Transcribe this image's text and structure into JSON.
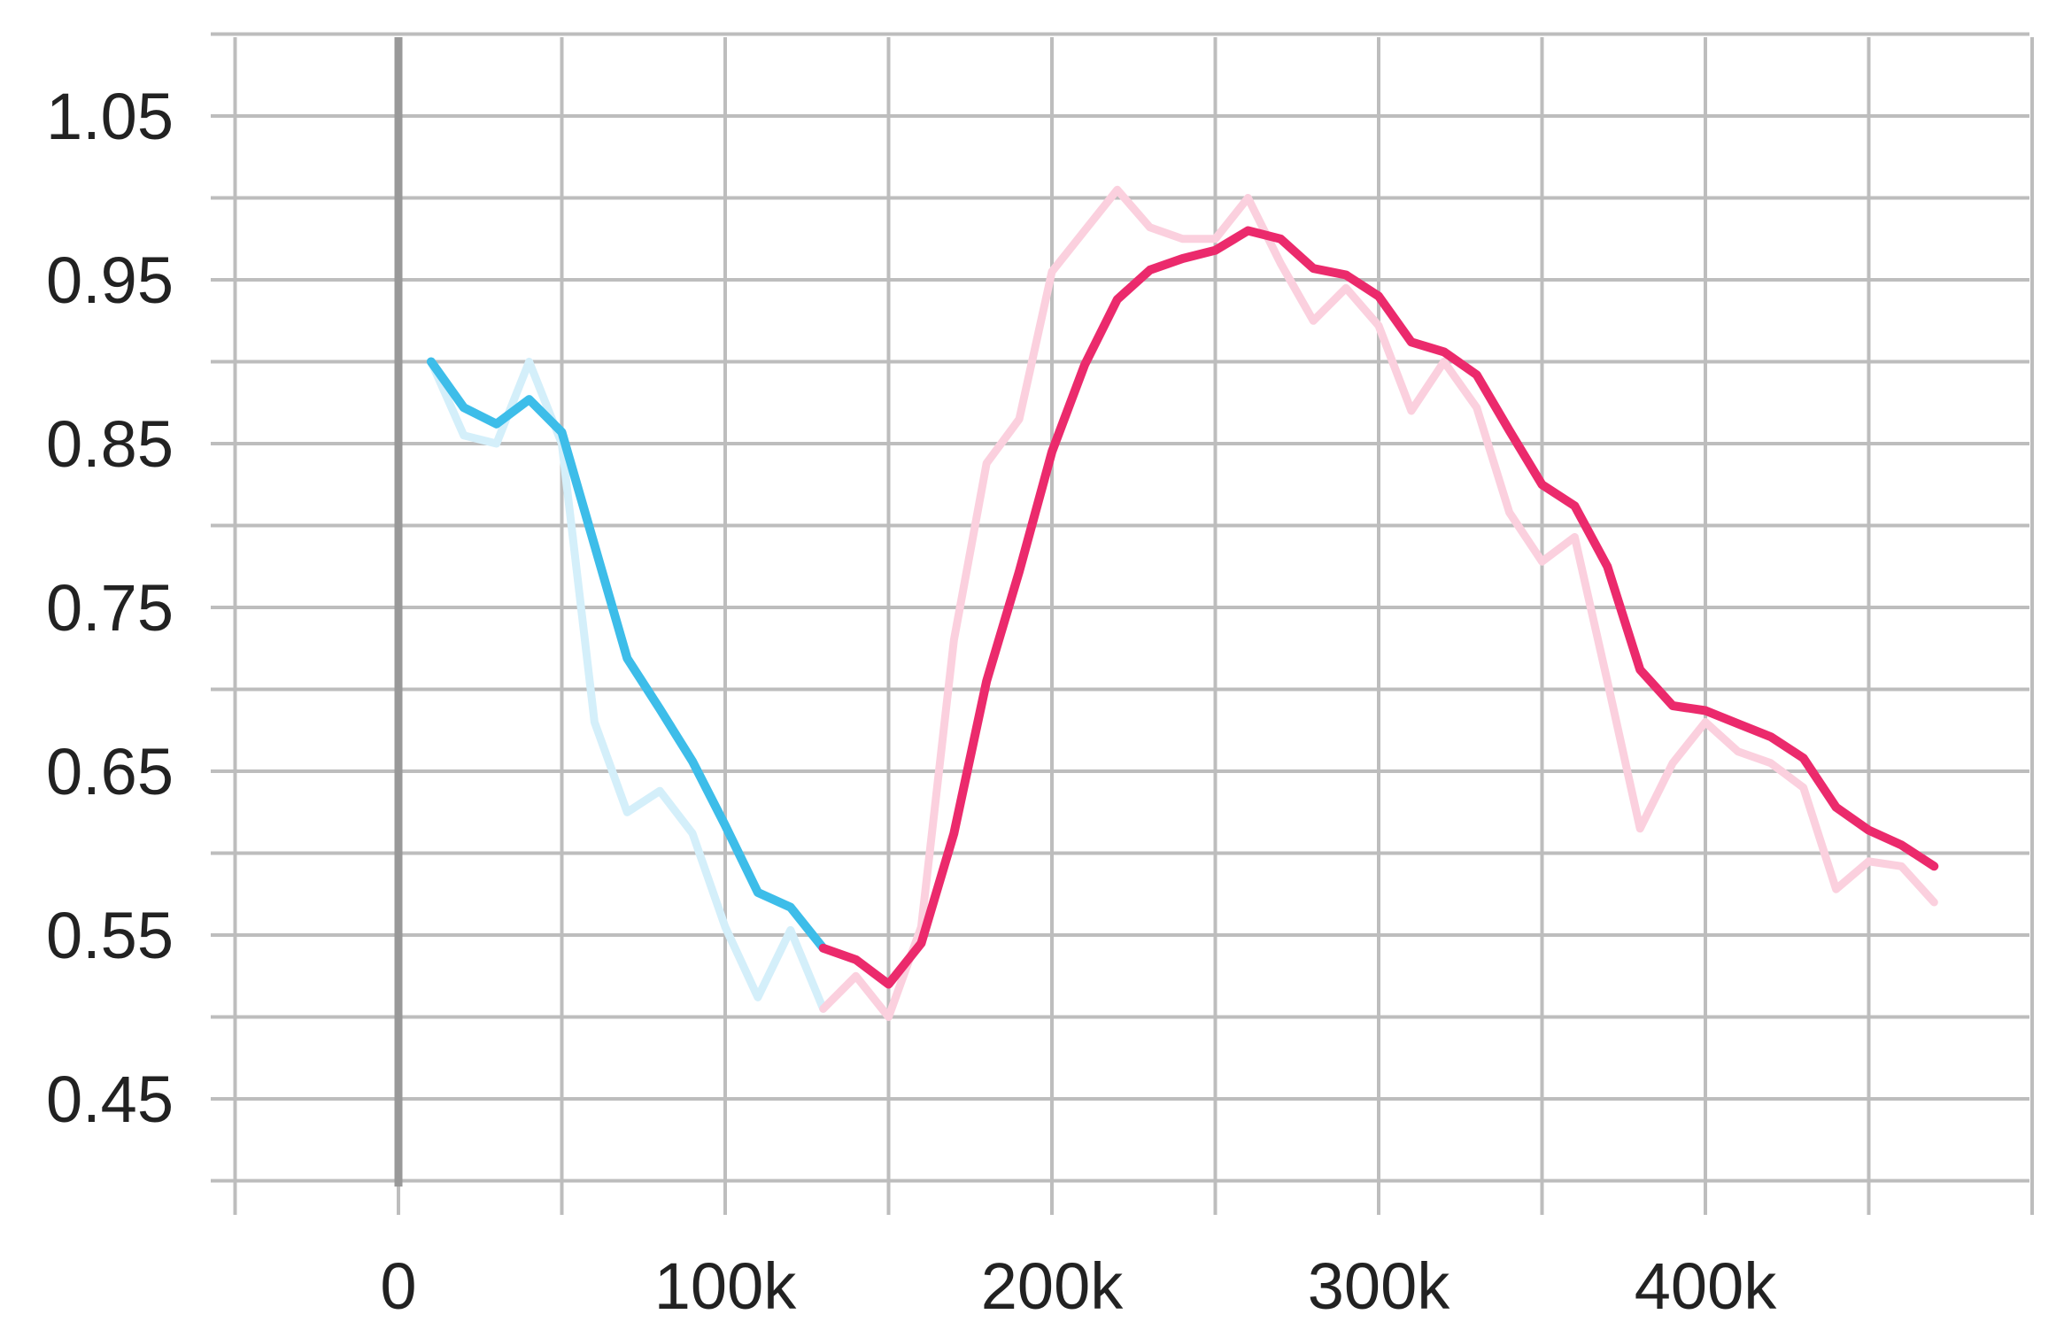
{
  "chart_data": {
    "type": "line",
    "title": "",
    "xlabel": "",
    "ylabel": "",
    "xlim": [
      -50000,
      500000
    ],
    "ylim": [
      0.4,
      1.1
    ],
    "grid": true,
    "x_ticks": [
      0,
      100000,
      200000,
      300000,
      400000
    ],
    "x_tick_labels": [
      "0",
      "100k",
      "200k",
      "300k",
      "400k"
    ],
    "y_ticks": [
      0.45,
      0.55,
      0.65,
      0.75,
      0.85,
      0.95,
      1.05
    ],
    "y_tick_labels": [
      "0.45",
      "0.55",
      "0.65",
      "0.75",
      "0.85",
      "0.95",
      "1.05"
    ],
    "series": [
      {
        "color": "#3dbde9",
        "raw_color": "#d4effa",
        "raw": {
          "x": [
            10000,
            20000,
            30000,
            40000,
            50000,
            60000,
            70000,
            80000,
            90000,
            100000,
            110000,
            120000,
            130000
          ],
          "y": [
            0.9,
            0.855,
            0.85,
            0.9,
            0.85,
            0.68,
            0.625,
            0.638,
            0.612,
            0.555,
            0.512,
            0.553,
            0.505
          ]
        },
        "smoothed": {
          "x": [
            10000,
            20000,
            30000,
            40000,
            50000,
            60000,
            70000,
            80000,
            90000,
            100000,
            110000,
            120000,
            130000
          ],
          "y": [
            0.9,
            0.872,
            0.862,
            0.877,
            0.857,
            0.788,
            0.719,
            0.688,
            0.656,
            0.617,
            0.576,
            0.567,
            0.542
          ]
        }
      },
      {
        "color": "#eb2a6c",
        "raw_color": "#fbd0de",
        "raw": {
          "x": [
            130000,
            140000,
            150000,
            160000,
            170000,
            180000,
            190000,
            200000,
            210000,
            220000,
            230000,
            240000,
            250000,
            260000,
            270000,
            280000,
            290000,
            300000,
            310000,
            320000,
            330000,
            340000,
            350000,
            360000,
            370000,
            380000,
            390000,
            400000,
            410000,
            420000,
            430000,
            440000,
            450000,
            460000,
            470000
          ],
          "y": [
            0.505,
            0.525,
            0.5,
            0.555,
            0.73,
            0.838,
            0.865,
            0.955,
            0.98,
            1.005,
            0.982,
            0.975,
            0.975,
            1.0,
            0.96,
            0.925,
            0.945,
            0.922,
            0.87,
            0.9,
            0.872,
            0.808,
            0.778,
            0.793,
            0.705,
            0.615,
            0.655,
            0.68,
            0.662,
            0.655,
            0.64,
            0.578,
            0.595,
            0.592,
            0.57
          ]
        },
        "smoothed": {
          "x": [
            130000,
            140000,
            150000,
            160000,
            170000,
            180000,
            190000,
            200000,
            210000,
            220000,
            230000,
            240000,
            250000,
            260000,
            270000,
            280000,
            290000,
            300000,
            310000,
            320000,
            330000,
            340000,
            350000,
            360000,
            370000,
            380000,
            390000,
            400000,
            410000,
            420000,
            430000,
            440000,
            450000,
            460000,
            470000
          ],
          "y": [
            0.542,
            0.535,
            0.52,
            0.545,
            0.612,
            0.705,
            0.772,
            0.845,
            0.898,
            0.938,
            0.956,
            0.963,
            0.968,
            0.98,
            0.975,
            0.957,
            0.953,
            0.94,
            0.912,
            0.906,
            0.892,
            0.858,
            0.825,
            0.812,
            0.775,
            0.712,
            0.69,
            0.687,
            0.679,
            0.671,
            0.658,
            0.628,
            0.614,
            0.605,
            0.592
          ]
        }
      }
    ]
  }
}
